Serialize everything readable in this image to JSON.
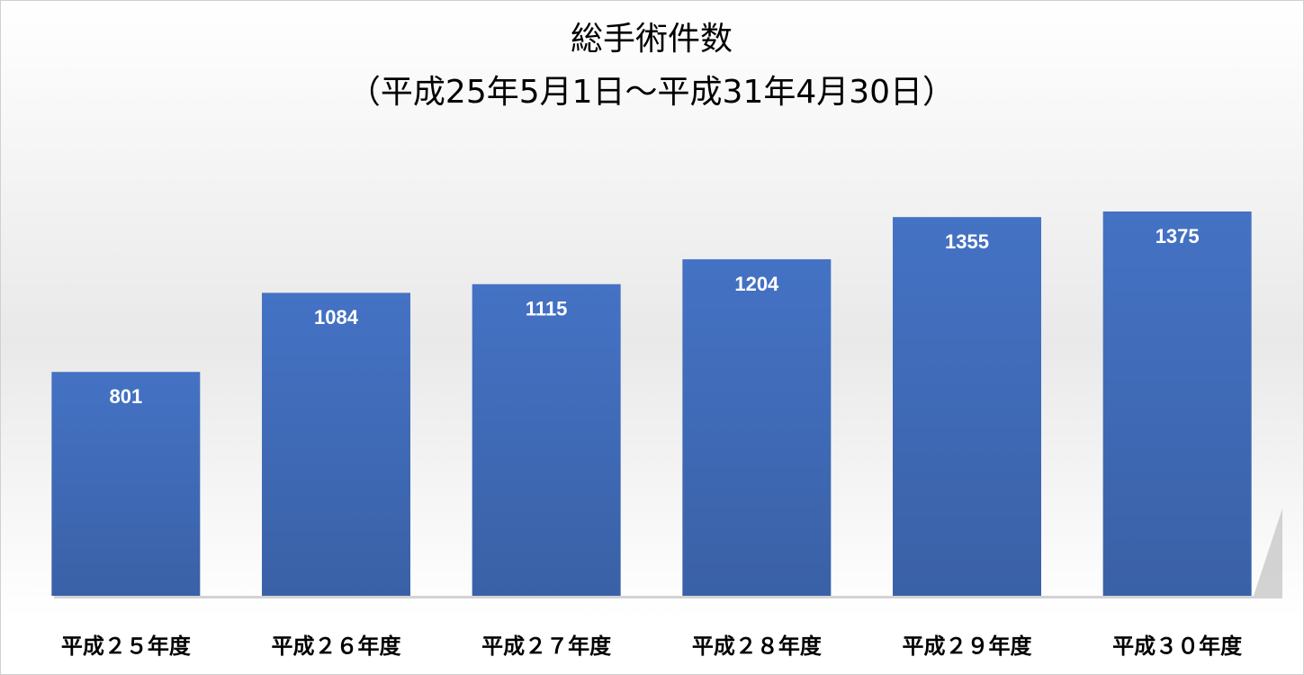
{
  "chart_data": {
    "type": "bar",
    "title": "総手術件数",
    "subtitle": "（平成25年5月1日～平成31年4月30日）",
    "categories": [
      "平成２５年度",
      "平成２６年度",
      "平成２７年度",
      "平成２８年度",
      "平成２９年度",
      "平成３０年度"
    ],
    "values": [
      801,
      1084,
      1115,
      1204,
      1355,
      1375
    ],
    "color": "#4472c4",
    "data_labels": true
  }
}
